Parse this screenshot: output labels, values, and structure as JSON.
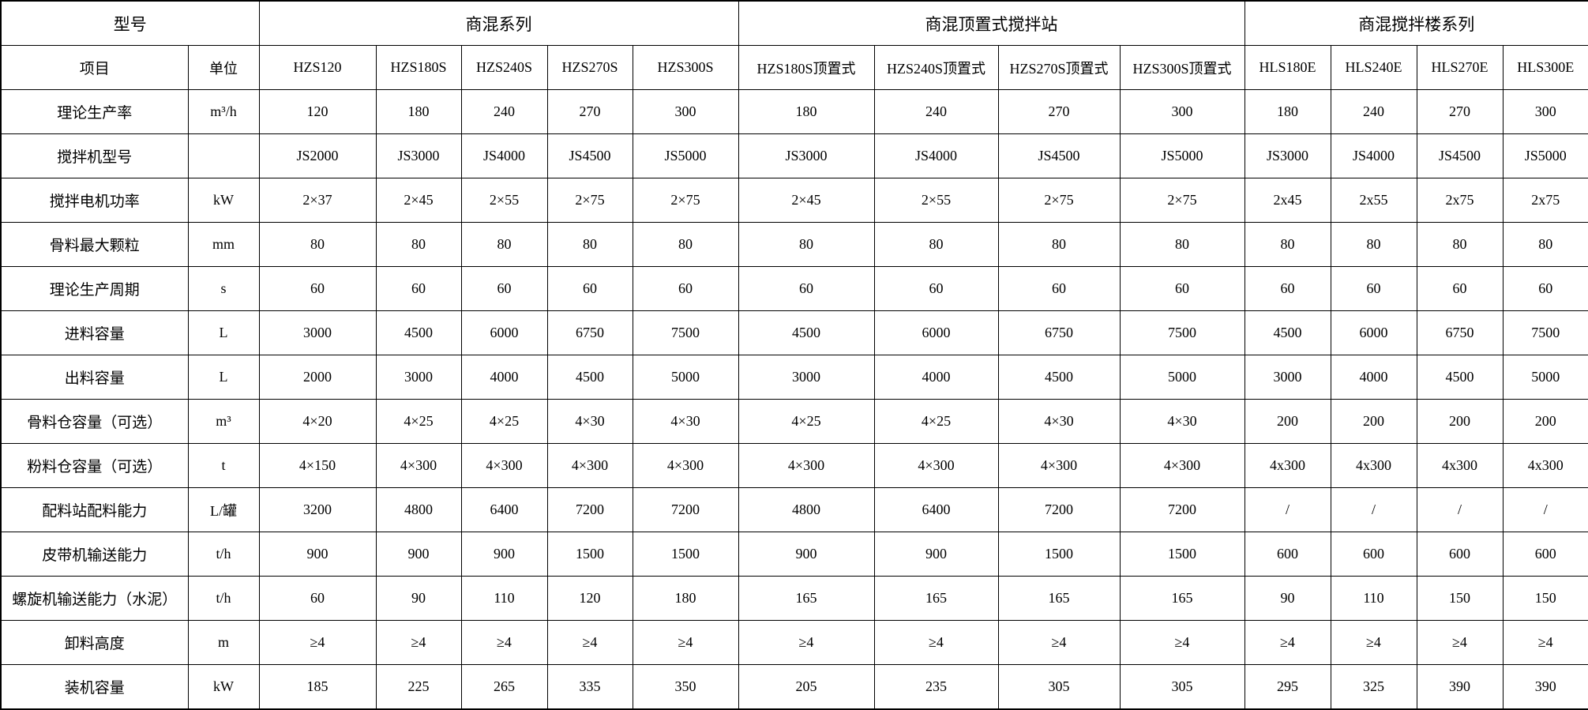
{
  "table": {
    "groups": [
      {
        "label": "型号",
        "span": 2
      },
      {
        "label": "商混系列",
        "span": 5
      },
      {
        "label": "商混顶置式搅拌站",
        "span": 4
      },
      {
        "label": "商混搅拌楼系列",
        "span": 4
      }
    ],
    "header": {
      "item_label": "项目",
      "unit_label": "单位",
      "models": [
        "HZS120",
        "HZS180S",
        "HZS240S",
        "HZS270S",
        "HZS300S",
        "HZS180S顶置式",
        "HZS240S顶置式",
        "HZS270S顶置式",
        "HZS300S顶置式",
        "HLS180E",
        "HLS240E",
        "HLS270E",
        "HLS300E"
      ]
    },
    "rows": [
      {
        "item": "理论生产率",
        "unit": "m³/h",
        "values": [
          "120",
          "180",
          "240",
          "270",
          "300",
          "180",
          "240",
          "270",
          "300",
          "180",
          "240",
          "270",
          "300"
        ]
      },
      {
        "item": "搅拌机型号",
        "unit": "",
        "values": [
          "JS2000",
          "JS3000",
          "JS4000",
          "JS4500",
          "JS5000",
          "JS3000",
          "JS4000",
          "JS4500",
          "JS5000",
          "JS3000",
          "JS4000",
          "JS4500",
          "JS5000"
        ]
      },
      {
        "item": "搅拌电机功率",
        "unit": "kW",
        "values": [
          "2×37",
          "2×45",
          "2×55",
          "2×75",
          "2×75",
          "2×45",
          "2×55",
          "2×75",
          "2×75",
          "2x45",
          "2x55",
          "2x75",
          "2x75"
        ]
      },
      {
        "item": "骨料最大颗粒",
        "unit": "mm",
        "values": [
          "80",
          "80",
          "80",
          "80",
          "80",
          "80",
          "80",
          "80",
          "80",
          "80",
          "80",
          "80",
          "80"
        ]
      },
      {
        "item": "理论生产周期",
        "unit": "s",
        "values": [
          "60",
          "60",
          "60",
          "60",
          "60",
          "60",
          "60",
          "60",
          "60",
          "60",
          "60",
          "60",
          "60"
        ]
      },
      {
        "item": "进料容量",
        "unit": "L",
        "values": [
          "3000",
          "4500",
          "6000",
          "6750",
          "7500",
          "4500",
          "6000",
          "6750",
          "7500",
          "4500",
          "6000",
          "6750",
          "7500"
        ]
      },
      {
        "item": "出料容量",
        "unit": "L",
        "values": [
          "2000",
          "3000",
          "4000",
          "4500",
          "5000",
          "3000",
          "4000",
          "4500",
          "5000",
          "3000",
          "4000",
          "4500",
          "5000"
        ]
      },
      {
        "item": "骨料仓容量（可选）",
        "unit": "m³",
        "values": [
          "4×20",
          "4×25",
          "4×25",
          "4×30",
          "4×30",
          "4×25",
          "4×25",
          "4×30",
          "4×30",
          "200",
          "200",
          "200",
          "200"
        ]
      },
      {
        "item": "粉料仓容量（可选）",
        "unit": "t",
        "values": [
          "4×150",
          "4×300",
          "4×300",
          "4×300",
          "4×300",
          "4×300",
          "4×300",
          "4×300",
          "4×300",
          "4x300",
          "4x300",
          "4x300",
          "4x300"
        ]
      },
      {
        "item": "配料站配料能力",
        "unit": "L/罐",
        "values": [
          "3200",
          "4800",
          "6400",
          "7200",
          "7200",
          "4800",
          "6400",
          "7200",
          "7200",
          "/",
          "/",
          "/",
          "/"
        ]
      },
      {
        "item": "皮带机输送能力",
        "unit": "t/h",
        "values": [
          "900",
          "900",
          "900",
          "1500",
          "1500",
          "900",
          "900",
          "1500",
          "1500",
          "600",
          "600",
          "600",
          "600"
        ]
      },
      {
        "item": "螺旋机输送能力（水泥）",
        "unit": "t/h",
        "values": [
          "60",
          "90",
          "110",
          "120",
          "180",
          "165",
          "165",
          "165",
          "165",
          "90",
          "110",
          "150",
          "150"
        ]
      },
      {
        "item": "卸料高度",
        "unit": "m",
        "values": [
          "≥4",
          "≥4",
          "≥4",
          "≥4",
          "≥4",
          "≥4",
          "≥4",
          "≥4",
          "≥4",
          "≥4",
          "≥4",
          "≥4",
          "≥4"
        ]
      },
      {
        "item": "装机容量",
        "unit": "kW",
        "values": [
          "185",
          "225",
          "265",
          "335",
          "350",
          "205",
          "235",
          "305",
          "305",
          "295",
          "325",
          "390",
          "390"
        ]
      }
    ]
  }
}
